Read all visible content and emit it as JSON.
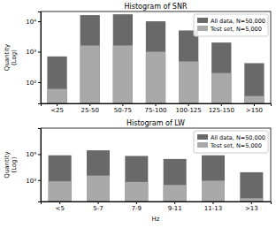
{
  "chart_data": [
    {
      "type": "bar",
      "title": "Histogram of SNR",
      "y_label": "Quantity\n(Log)",
      "categories": [
        "<25",
        "25-50",
        "50-75",
        "75-100",
        "100-125",
        "125-150",
        ">150"
      ],
      "series": [
        {
          "name": "All data, N=50,000",
          "color": "#696969",
          "values": [
            700,
            16000,
            17000,
            10000,
            5000,
            2000,
            420
          ]
        },
        {
          "name": "Test set, N=5,000",
          "color": "#a9a9a9",
          "values": [
            60,
            1600,
            1600,
            1000,
            480,
            200,
            35
          ]
        }
      ],
      "ylim": [
        20,
        21000
      ],
      "yticks": [
        {
          "value": 100,
          "label": "10²"
        },
        {
          "value": 1000,
          "label": "10³"
        },
        {
          "value": 10000,
          "label": "10⁴"
        }
      ],
      "log": "y",
      "legend": "upper right"
    },
    {
      "type": "bar",
      "title": "Histogram of LW",
      "y_label": "Quantity\n(Log)",
      "x_label": "Hz",
      "categories": [
        "<5",
        "5-7",
        "7-9",
        "9-11",
        "11-13",
        ">13"
      ],
      "series": [
        {
          "name": "All data, N=50,000",
          "color": "#696969",
          "values": [
            9000,
            14000,
            8500,
            6500,
            9000,
            2000
          ]
        },
        {
          "name": "Test set, N=5,000",
          "color": "#a9a9a9",
          "values": [
            900,
            1500,
            850,
            650,
            950,
            200
          ]
        }
      ],
      "ylim": [
        150,
        100000
      ],
      "yticks": [
        {
          "value": 1000,
          "label": "10³"
        },
        {
          "value": 10000,
          "label": "10⁴"
        }
      ],
      "log": "y",
      "legend": "upper right"
    }
  ]
}
